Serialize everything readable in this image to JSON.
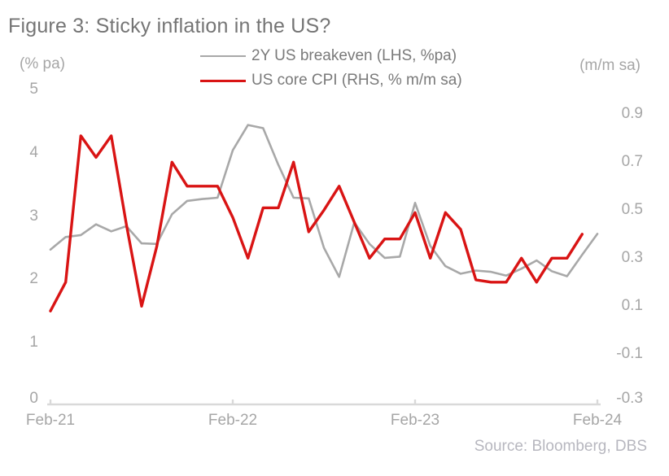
{
  "figure": {
    "title": "Figure 3: Sticky inflation in the US?",
    "source": "Source: Bloomberg, DBS",
    "left_axis_unit": "(% pa)",
    "right_axis_unit": "(m/m sa)"
  },
  "colors": {
    "breakeven_line": "#a8a8a8",
    "cpi_line": "#d91414",
    "axis_line": "#d9d9d9",
    "tick_label": "#a6a6a6",
    "title_text": "#757575",
    "legend_text": "#7a7a7a",
    "source_text": "#b7b7bf"
  },
  "chart_data": {
    "type": "line",
    "title": "Figure 3: Sticky inflation in the US?",
    "grid": false,
    "legend_position": "top",
    "x": [
      "Feb-21",
      "Mar-21",
      "Apr-21",
      "May-21",
      "Jun-21",
      "Jul-21",
      "Aug-21",
      "Sep-21",
      "Oct-21",
      "Nov-21",
      "Dec-21",
      "Jan-22",
      "Feb-22",
      "Mar-22",
      "Apr-22",
      "May-22",
      "Jun-22",
      "Jul-22",
      "Aug-22",
      "Sep-22",
      "Oct-22",
      "Nov-22",
      "Dec-22",
      "Jan-23",
      "Feb-23",
      "Mar-23",
      "Apr-23",
      "May-23",
      "Jun-23",
      "Jul-23",
      "Aug-23",
      "Sep-23",
      "Oct-23",
      "Nov-23",
      "Dec-23",
      "Jan-24",
      "Feb-24"
    ],
    "x_tick_indices": [
      0,
      12,
      24,
      36
    ],
    "x_tick_labels": [
      "Feb-21",
      "Feb-22",
      "Feb-23",
      "Feb-24"
    ],
    "left_axis": {
      "label": "(% pa)",
      "ticks": [
        "5",
        "4",
        "3",
        "2",
        "1",
        "0"
      ],
      "range": [
        0,
        5
      ]
    },
    "right_axis": {
      "label": "(m/m sa)",
      "ticks": [
        "0.9",
        "0.7",
        "0.5",
        "0.3",
        "0.1",
        "-0.1",
        "-0.3"
      ],
      "range": [
        -0.3,
        0.9
      ]
    },
    "series": [
      {
        "name": "2Y US breakeven (LHS, %pa)",
        "axis": "left",
        "color": "#a8a8a8",
        "values": [
          2.47,
          2.67,
          2.7,
          2.87,
          2.76,
          2.84,
          2.57,
          2.56,
          3.03,
          3.24,
          3.27,
          3.29,
          4.04,
          4.44,
          4.39,
          3.81,
          3.29,
          3.28,
          2.5,
          2.04,
          2.9,
          2.56,
          2.34,
          2.36,
          3.21,
          2.53,
          2.21,
          2.09,
          2.14,
          2.12,
          2.06,
          2.17,
          2.3,
          2.13,
          2.05,
          2.39,
          2.72
        ]
      },
      {
        "name": "US core CPI (RHS, % m/m sa)",
        "axis": "right",
        "color": "#d91414",
        "values": [
          0.08,
          0.2,
          0.81,
          0.72,
          0.81,
          0.44,
          0.1,
          0.35,
          0.7,
          0.6,
          0.6,
          0.6,
          0.47,
          0.3,
          0.51,
          0.51,
          0.7,
          0.41,
          0.5,
          0.6,
          0.45,
          0.3,
          0.38,
          0.38,
          0.49,
          0.3,
          0.49,
          0.42,
          0.21,
          0.2,
          0.2,
          0.3,
          0.2,
          0.3,
          0.3,
          0.4
        ]
      }
    ]
  }
}
